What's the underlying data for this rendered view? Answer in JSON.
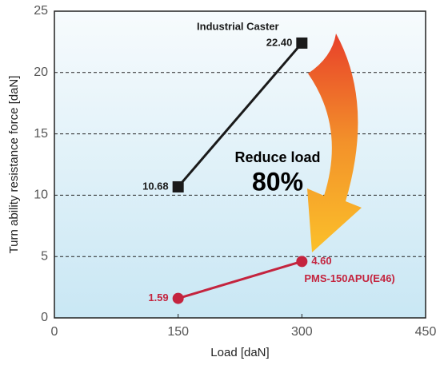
{
  "chart_data": {
    "type": "line",
    "x_label": "Load [daN]",
    "y_label": "Turn ability resistance force [daN]",
    "xlim": [
      0,
      450
    ],
    "xticks": [
      0,
      150,
      300,
      450
    ],
    "ylim": [
      0,
      25
    ],
    "yticks": [
      0,
      5,
      10,
      15,
      20,
      25
    ],
    "grid": true,
    "series": [
      {
        "name": "Industrial Caster",
        "color": "#1a1a1a",
        "marker": "square",
        "x": [
          150,
          300
        ],
        "values": [
          10.68,
          22.4
        ],
        "value_labels": [
          "10.68",
          "22.40"
        ]
      },
      {
        "name": "PMS-150APU(E46)",
        "color": "#c4243e",
        "marker": "circle",
        "x": [
          150,
          300
        ],
        "values": [
          1.59,
          4.6
        ],
        "value_labels": [
          "1.59",
          "4.60"
        ]
      }
    ],
    "annotations": [
      {
        "text": "Reduce load",
        "color": "#1a1a1a"
      },
      {
        "text": "80%",
        "color": "#e8352a"
      }
    ]
  }
}
